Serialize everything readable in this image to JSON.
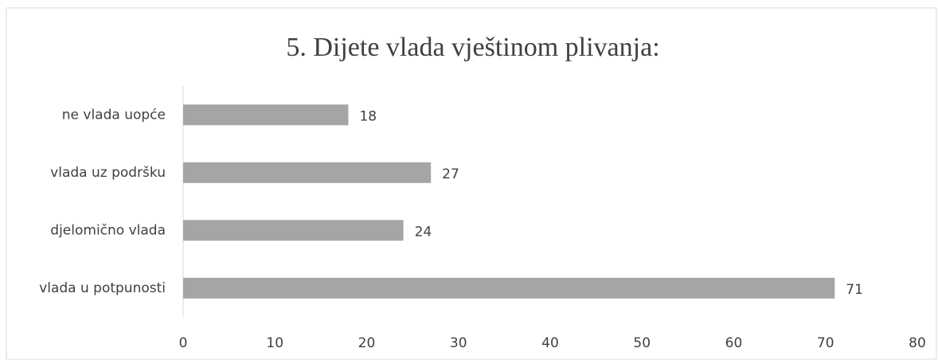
{
  "chart_data": {
    "type": "bar",
    "orientation": "horizontal",
    "title": "5. Dijete vlada vještinom plivanja:",
    "categories": [
      "ne vlada uopće",
      "vlada uz podršku",
      "djelomično vlada",
      "vlada u potpunosti"
    ],
    "values": [
      18,
      27,
      24,
      71
    ],
    "color": "#a5a5a5",
    "xlim": [
      0,
      80
    ],
    "xticks": [
      0,
      10,
      20,
      30,
      40,
      50,
      60,
      70,
      80
    ],
    "grid": false
  }
}
